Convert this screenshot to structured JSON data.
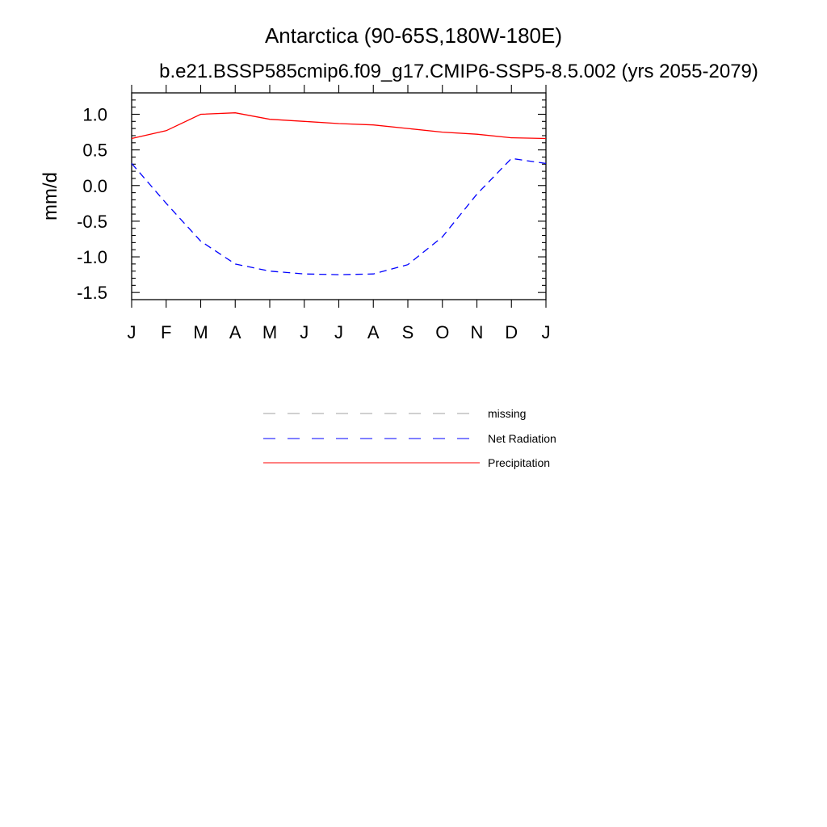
{
  "chart_data": {
    "type": "line",
    "title": "Antarctica (90-65S,180W-180E)",
    "subtitle": "b.e21.BSSP585cmip6.f09_g17.CMIP6-SSP5-8.5.002 (yrs 2055-2079)",
    "xlabel": "",
    "ylabel": "mm/d",
    "categories": [
      "J",
      "F",
      "M",
      "A",
      "M",
      "J",
      "J",
      "A",
      "S",
      "O",
      "N",
      "D",
      "J"
    ],
    "ylim": [
      -1.6,
      1.3
    ],
    "yticks": [
      1.0,
      0.5,
      0.0,
      -0.5,
      -1.0,
      -1.5
    ],
    "ytick_labels": [
      "1.0",
      "0.5",
      "0.0",
      "-0.5",
      "-1.0",
      "-1.5"
    ],
    "grid": false,
    "legend_position": "bottom",
    "series": [
      {
        "name": "Precipitation",
        "color": "#ff0000",
        "dash": "solid",
        "values": [
          0.66,
          0.77,
          1.0,
          1.02,
          0.93,
          0.9,
          0.87,
          0.85,
          0.8,
          0.75,
          0.72,
          0.67,
          0.66
        ]
      },
      {
        "name": "Net Radiation",
        "color": "#0000ff",
        "dash": "dashed",
        "values": [
          0.31,
          -0.25,
          -0.78,
          -1.1,
          -1.2,
          -1.24,
          -1.25,
          -1.24,
          -1.11,
          -0.72,
          -0.12,
          0.38,
          0.31
        ]
      }
    ],
    "legend": [
      {
        "label": "missing",
        "color": "#a0a0a0",
        "dash": "dashed"
      },
      {
        "label": "Net Radiation",
        "color": "#0000ff",
        "dash": "dashed"
      },
      {
        "label": "Precipitation",
        "color": "#ff0000",
        "dash": "solid"
      }
    ]
  }
}
